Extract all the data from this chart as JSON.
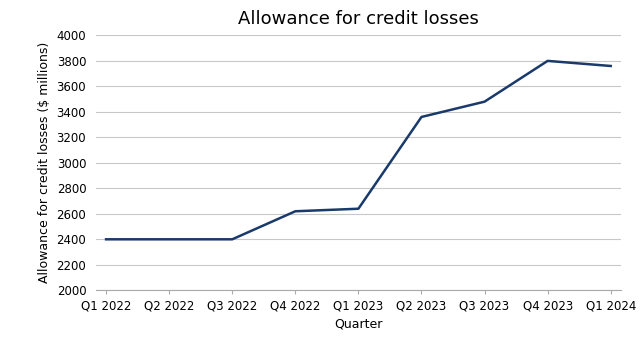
{
  "title": "Allowance for credit losses",
  "xlabel": "Quarter",
  "ylabel": "Allowance for credit losses ($ millions)",
  "quarters": [
    "Q1 2022",
    "Q2 2022",
    "Q3 2022",
    "Q4 2022",
    "Q1 2023",
    "Q2 2023",
    "Q3 2023",
    "Q4 2023",
    "Q1 2024"
  ],
  "values": [
    2400,
    2400,
    2400,
    2620,
    2640,
    3360,
    3480,
    3800,
    3760
  ],
  "ylim": [
    2000,
    4000
  ],
  "yticks": [
    2000,
    2200,
    2400,
    2600,
    2800,
    3000,
    3200,
    3400,
    3600,
    3800,
    4000
  ],
  "line_color": "#1a3a6b",
  "line_width": 1.8,
  "background_color": "#ffffff",
  "plot_bg_color": "#ffffff",
  "grid_color": "#c8c8c8",
  "title_fontsize": 13,
  "label_fontsize": 9,
  "tick_fontsize": 8.5
}
